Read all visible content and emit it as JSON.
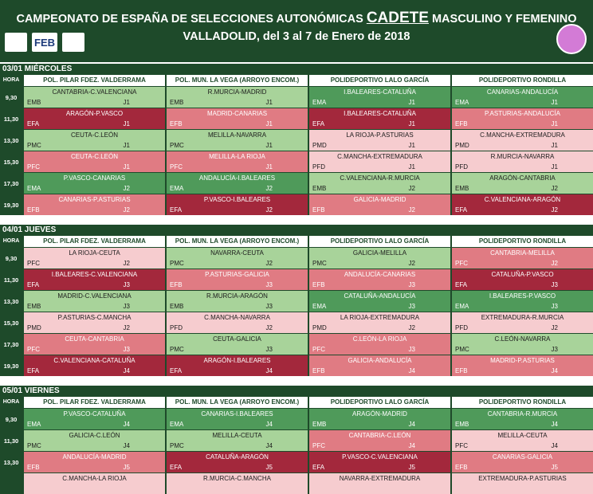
{
  "header": {
    "title_pre": "CAMPEONATO DE ESPAÑA DE SELECCIONES AUTONÓMICAS ",
    "title_big": "CADETE",
    "title_post": " MASCULINO Y FEMENINO",
    "subtitle": "VALLADOLID, del 3 al 7 de Enero de 2018",
    "logo_feb": "FEB"
  },
  "hora_label": "HORA",
  "venues": [
    "POL. PILAR FDEZ. VALDERRAMA",
    "POL. MUN. LA VEGA (ARROYO ENCOM.)",
    "POLIDEPORTIVO LALO GARCÍA",
    "POLIDEPORTIVO RONDILLA"
  ],
  "colors": {
    "dark_green": "#4f9a5a",
    "light_green": "#a8d39a",
    "dark_red": "#a3283c",
    "mid_red": "#e07b83",
    "pale_pink": "#f6cccf",
    "header_green": "#1e4a2a"
  },
  "days": [
    {
      "label": "03/01 MIÉRCOLES",
      "rows": [
        {
          "time": "9,30",
          "cells": [
            {
              "match": "CANTABRIA-C.VALENCIANA",
              "code": "EMB",
              "j": "J1",
              "color": "lg"
            },
            {
              "match": "R.MURCIA-MADRID",
              "code": "EMB",
              "j": "J1",
              "color": "lg"
            },
            {
              "match": "I.BALEARES-CATALUÑA",
              "code": "EMA",
              "j": "J1",
              "color": "dg"
            },
            {
              "match": "CANARIAS-ANDALUCÍA",
              "code": "EMA",
              "j": "J1",
              "color": "dg"
            }
          ]
        },
        {
          "time": "11,30",
          "cells": [
            {
              "match": "ARAGÓN-P.VASCO",
              "code": "EFA",
              "j": "J1",
              "color": "dr"
            },
            {
              "match": "MADRID-CANARIAS",
              "code": "EFB",
              "j": "J1",
              "color": "mr"
            },
            {
              "match": "I.BALEARES-CATALUÑA",
              "code": "EFA",
              "j": "J1",
              "color": "dr"
            },
            {
              "match": "P.ASTURIAS-ANDALUCÍA",
              "code": "EFB",
              "j": "J1",
              "color": "mr"
            }
          ]
        },
        {
          "time": "13,30",
          "cells": [
            {
              "match": "CEUTA-C.LEÓN",
              "code": "PMC",
              "j": "J1",
              "color": "lg"
            },
            {
              "match": "MELILLA-NAVARRA",
              "code": "PMC",
              "j": "J1",
              "color": "lg"
            },
            {
              "match": "LA RIOJA-P.ASTURIAS",
              "code": "PMD",
              "j": "J1",
              "color": "pp"
            },
            {
              "match": "C.MANCHA-EXTREMADURA",
              "code": "PMD",
              "j": "J1",
              "color": "pp"
            }
          ]
        },
        {
          "time": "15,30",
          "cells": [
            {
              "match": "CEUTA-C.LEÓN",
              "code": "PFC",
              "j": "J1",
              "color": "mr"
            },
            {
              "match": "MELILLA-LA RIOJA",
              "code": "PFC",
              "j": "J1",
              "color": "mr"
            },
            {
              "match": "C.MANCHA-EXTREMADURA",
              "code": "PFD",
              "j": "J1",
              "color": "pp"
            },
            {
              "match": "R.MURCIA-NAVARRA",
              "code": "PFD",
              "j": "J1",
              "color": "pp"
            }
          ]
        },
        {
          "time": "17,30",
          "cells": [
            {
              "match": "P.VASCO-CANARIAS",
              "code": "EMA",
              "j": "J2",
              "color": "dg"
            },
            {
              "match": "ANDALUCÍA-I.BALEARES",
              "code": "EMA",
              "j": "J2",
              "color": "dg"
            },
            {
              "match": "C.VALENCIANA-R.MURCIA",
              "code": "EMB",
              "j": "J2",
              "color": "lg"
            },
            {
              "match": "ARAGÓN-CANTABRIA",
              "code": "EMB",
              "j": "J2",
              "color": "lg"
            }
          ]
        },
        {
          "time": "19,30",
          "cells": [
            {
              "match": "CANARIAS-P.ASTURIAS",
              "code": "EFB",
              "j": "J2",
              "color": "mr"
            },
            {
              "match": "P.VASCO-I.BALEARES",
              "code": "EFA",
              "j": "J2",
              "color": "dr"
            },
            {
              "match": "GALICIA-MADRID",
              "code": "EFB",
              "j": "J2",
              "color": "mr"
            },
            {
              "match": "C.VALENCIANA-ARAGÓN",
              "code": "EFA",
              "j": "J2",
              "color": "dr"
            }
          ]
        }
      ]
    },
    {
      "label": "04/01 JUEVES",
      "rows": [
        {
          "time": "9,30",
          "cells": [
            {
              "match": "LA RIOJA-CEUTA",
              "code": "PFC",
              "j": "J2",
              "color": "pp"
            },
            {
              "match": "NAVARRA-CEUTA",
              "code": "PMC",
              "j": "J2",
              "color": "lg"
            },
            {
              "match": "GALICIA-MELILLA",
              "code": "PMC",
              "j": "J2",
              "color": "lg"
            },
            {
              "match": "CANTABRIA-MELILLA",
              "code": "PFC",
              "j": "J2",
              "color": "mr"
            }
          ]
        },
        {
          "time": "11,30",
          "cells": [
            {
              "match": "I.BALEARES-C.VALENCIANA",
              "code": "EFA",
              "j": "J3",
              "color": "dr"
            },
            {
              "match": "P.ASTURIAS-GALICIA",
              "code": "EFB",
              "j": "J3",
              "color": "mr"
            },
            {
              "match": "ANDALUCÍA-CANARIAS",
              "code": "EFB",
              "j": "J3",
              "color": "mr"
            },
            {
              "match": "CATALUÑA-P.VASCO",
              "code": "EFA",
              "j": "J3",
              "color": "dr"
            }
          ]
        },
        {
          "time": "13,30",
          "cells": [
            {
              "match": "MADRID-C.VALENCIANA",
              "code": "EMB",
              "j": "J3",
              "color": "lg"
            },
            {
              "match": "R.MURCIA-ARAGÓN",
              "code": "EMB",
              "j": "J3",
              "color": "lg"
            },
            {
              "match": "CATALUÑA-ANDALUCÍA",
              "code": "EMA",
              "j": "J3",
              "color": "dg"
            },
            {
              "match": "I.BALEARES-P.VASCO",
              "code": "EMA",
              "j": "J3",
              "color": "dg"
            }
          ]
        },
        {
          "time": "15,30",
          "cells": [
            {
              "match": "P.ASTURIAS-C.MANCHA",
              "code": "PMD",
              "j": "J2",
              "color": "pp"
            },
            {
              "match": "C.MANCHA-NAVARRA",
              "code": "PFD",
              "j": "J2",
              "color": "pp"
            },
            {
              "match": "LA RIOJA-EXTREMADURA",
              "code": "PMD",
              "j": "J2",
              "color": "pp"
            },
            {
              "match": "EXTREMADURA-R.MURCIA",
              "code": "PFD",
              "j": "J2",
              "color": "pp"
            }
          ]
        },
        {
          "time": "17,30",
          "cells": [
            {
              "match": "CEUTA-CANTABRIA",
              "code": "PFC",
              "j": "J3",
              "color": "mr"
            },
            {
              "match": "CEUTA-GALICIA",
              "code": "PMC",
              "j": "J3",
              "color": "lg"
            },
            {
              "match": "C.LEÓN-LA RIOJA",
              "code": "PFC",
              "j": "J3",
              "color": "mr"
            },
            {
              "match": "C.LEÓN-NAVARRA",
              "code": "PMC",
              "j": "J3",
              "color": "lg"
            }
          ]
        },
        {
          "time": "19,30",
          "cells": [
            {
              "match": "C.VALENCIANA-CATALUÑA",
              "code": "EFA",
              "j": "J4",
              "color": "dr"
            },
            {
              "match": "ARAGÓN-I.BALEARES",
              "code": "EFA",
              "j": "J4",
              "color": "dr"
            },
            {
              "match": "GALICIA-ANDALUCÍA",
              "code": "EFB",
              "j": "J4",
              "color": "mr"
            },
            {
              "match": "MADRID-P.ASTURIAS",
              "code": "EFB",
              "j": "J4",
              "color": "mr"
            }
          ]
        }
      ]
    },
    {
      "label": "05/01 VIERNES",
      "rows": [
        {
          "time": "9,30",
          "cells": [
            {
              "match": "P.VASCO-CATALUÑA",
              "code": "EMA",
              "j": "J4",
              "color": "dg"
            },
            {
              "match": "CANARIAS-I.BALEARES",
              "code": "EMA",
              "j": "J4",
              "color": "dg"
            },
            {
              "match": "ARAGÓN-MADRID",
              "code": "EMB",
              "j": "J4",
              "color": "dg"
            },
            {
              "match": "CANTABRIA-R.MURCIA",
              "code": "EMB",
              "j": "J4",
              "color": "dg"
            }
          ]
        },
        {
          "time": "11,30",
          "cells": [
            {
              "match": "GALICIA-C.LEÓN",
              "code": "PMC",
              "j": "J4",
              "color": "lg"
            },
            {
              "match": "MELILLA-CEUTA",
              "code": "PMC",
              "j": "J4",
              "color": "lg"
            },
            {
              "match": "CANTABRIA-C.LEÓN",
              "code": "PFC",
              "j": "J4",
              "color": "mr"
            },
            {
              "match": "MELILLA-CEUTA",
              "code": "PFC",
              "j": "J4",
              "color": "pp"
            }
          ]
        },
        {
          "time": "13,30",
          "cells": [
            {
              "match": "ANDALUCÍA-MADRID",
              "code": "EFB",
              "j": "J5",
              "color": "mr"
            },
            {
              "match": "CATALUÑA-ARAGÓN",
              "code": "EFA",
              "j": "J5",
              "color": "dr"
            },
            {
              "match": "P.VASCO-C.VALENCIANA",
              "code": "EFA",
              "j": "J5",
              "color": "dr"
            },
            {
              "match": "CANARIAS-GALICIA",
              "code": "EFB",
              "j": "J5",
              "color": "mr"
            }
          ]
        },
        {
          "time": "",
          "cells": [
            {
              "match": "C.MANCHA-LA RIOJA",
              "code": "",
              "j": "",
              "color": "pp"
            },
            {
              "match": "R.MURCIA-C.MANCHA",
              "code": "",
              "j": "",
              "color": "pp"
            },
            {
              "match": "NAVARRA-EXTREMADURA",
              "code": "",
              "j": "",
              "color": "pp"
            },
            {
              "match": "EXTREMADURA-P.ASTURIAS",
              "code": "",
              "j": "",
              "color": "pp"
            }
          ]
        }
      ]
    }
  ]
}
